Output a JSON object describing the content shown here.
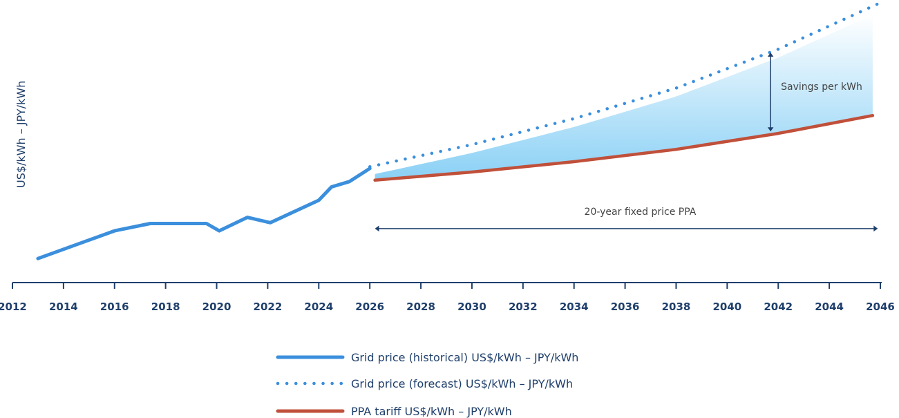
{
  "chart_data": {
    "type": "line",
    "xlabel": "",
    "ylabel": "US$/kWh – JPY/kWh",
    "xlim": [
      2012,
      2046
    ],
    "ylim": [
      0,
      100
    ],
    "x_ticks": [
      2012,
      2014,
      2016,
      2018,
      2020,
      2022,
      2024,
      2026,
      2028,
      2030,
      2032,
      2034,
      2036,
      2038,
      2040,
      2042,
      2044,
      2046
    ],
    "grid": false,
    "legend_position": "bottom-center",
    "series": [
      {
        "name": "Grid price (historical) US$/kWh – JPY/kWh",
        "style": "solid",
        "color": "#3b8fdc",
        "points": [
          [
            2013,
            8.6
          ],
          [
            2016,
            18.5
          ],
          [
            2017.4,
            21.1
          ],
          [
            2019.6,
            21.1
          ],
          [
            2020.1,
            18.5
          ],
          [
            2021.2,
            23.3
          ],
          [
            2022.1,
            21.4
          ],
          [
            2024,
            29.4
          ],
          [
            2024.5,
            34.2
          ],
          [
            2025.2,
            36.1
          ],
          [
            2026,
            40.8
          ]
        ]
      },
      {
        "name": "Grid price (forecast) US$/kWh – JPY/kWh",
        "style": "dotted",
        "color": "#3b8fdc",
        "points": [
          [
            2026,
            41.4
          ],
          [
            2030,
            49.3
          ],
          [
            2034,
            58.6
          ],
          [
            2038,
            69.5
          ],
          [
            2042,
            83.4
          ],
          [
            2046,
            100
          ]
        ]
      },
      {
        "name": "PPA tariff US$/kWh – JPY/kWh",
        "style": "solid",
        "color": "#c0503a",
        "points": [
          [
            2026.2,
            36.6
          ],
          [
            2030,
            39.5
          ],
          [
            2034,
            43.2
          ],
          [
            2038,
            47.6
          ],
          [
            2042,
            53.3
          ],
          [
            2045.7,
            59.7
          ]
        ]
      }
    ],
    "annotations": [
      {
        "text": "Savings per kWh",
        "x": 2041.7,
        "y_from": 54.0,
        "y_to": 82.2
      },
      {
        "text": "20-year fixed price PPA",
        "x_from": 2026.2,
        "x_to": 2045.9,
        "y": 19.3
      }
    ],
    "fill_color": "#7dcbf4"
  }
}
